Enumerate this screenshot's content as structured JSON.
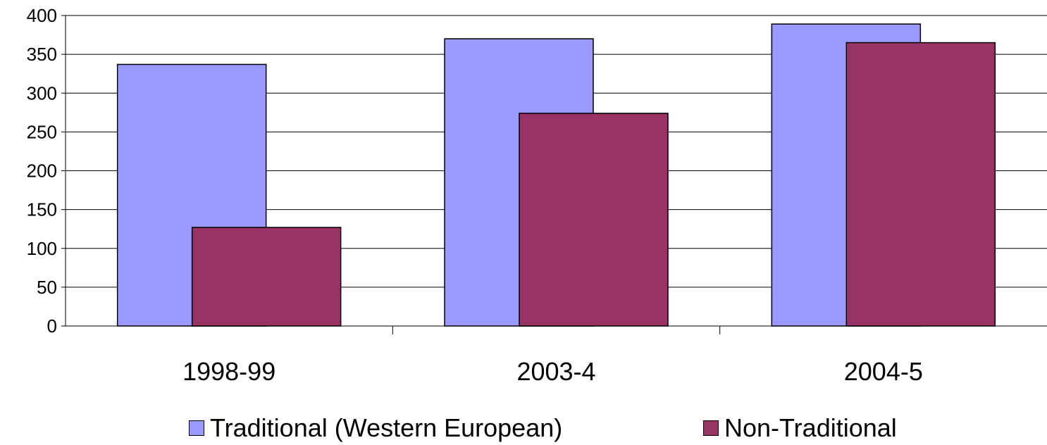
{
  "chart_data": {
    "type": "bar",
    "categories": [
      "1998-99",
      "2003-4",
      "2004-5"
    ],
    "series": [
      {
        "name": "Traditional (Western European)",
        "color": "#9999ff",
        "values": [
          337,
          370,
          389
        ]
      },
      {
        "name": "Non-Traditional",
        "color": "#993366",
        "values": [
          127,
          274,
          365
        ]
      }
    ],
    "title": "",
    "xlabel": "",
    "ylabel": "",
    "ylim": [
      0,
      400
    ],
    "yticks": [
      "0",
      "50",
      "100",
      "150",
      "200",
      "250",
      "300",
      "350",
      "400"
    ],
    "grid": true,
    "legend": "bottom"
  }
}
